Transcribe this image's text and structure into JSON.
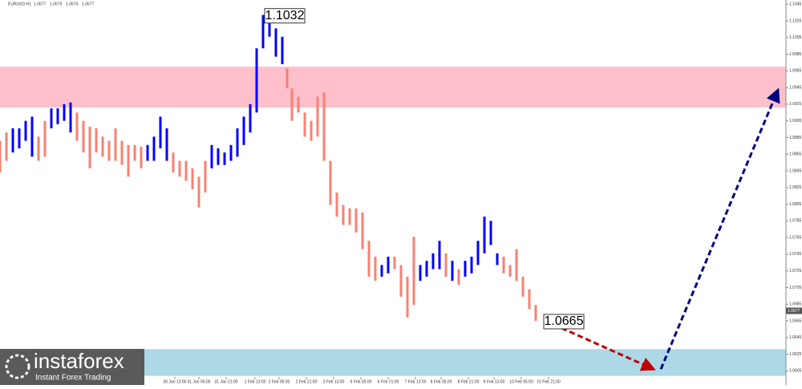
{
  "chart_data": {
    "type": "range_bars",
    "symbol": "EURUSD,H1",
    "header_ohlc": [
      1.0677,
      1.0679,
      1.0674,
      1.0677
    ],
    "last_price": 1.0677,
    "xlim": [
      0,
      245
    ],
    "ylim": [
      1.0588,
      1.105
    ],
    "yticks": [
      1.1045,
      1.1025,
      1.1005,
      1.0985,
      1.0965,
      1.0945,
      1.0925,
      1.0905,
      1.0885,
      1.0865,
      1.0845,
      1.0825,
      1.0805,
      1.0785,
      1.0765,
      1.0745,
      1.0725,
      1.0705,
      1.0685,
      1.0665,
      1.0645,
      1.0625,
      1.0605
    ],
    "xticks": [
      {
        "value": 54.5,
        "label": "30 Jan 13:00"
      },
      {
        "value": 62,
        "label": "31 Jan 05:00"
      },
      {
        "value": 70.5,
        "label": "31 Jan 21:00"
      },
      {
        "value": 79.5,
        "label": "1 Feb 13:00"
      },
      {
        "value": 87,
        "label": "2 Feb 05:00"
      },
      {
        "value": 95.5,
        "label": "2 Feb 21:00"
      },
      {
        "value": 104,
        "label": "3 Feb 13:00"
      },
      {
        "value": 112.5,
        "label": "6 Feb 05:00"
      },
      {
        "value": 121,
        "label": "6 Feb 21:00"
      },
      {
        "value": 129.5,
        "label": "7 Feb 13:00"
      },
      {
        "value": 137.5,
        "label": "8 Feb 05:00"
      },
      {
        "value": 146,
        "label": "8 Feb 21:00"
      },
      {
        "value": 154,
        "label": "9 Feb 13:00"
      },
      {
        "value": 162.5,
        "label": "10 Feb 05:00"
      },
      {
        "value": 171,
        "label": "10 Feb 21:00"
      }
    ],
    "zones": [
      {
        "from": 1.0921,
        "to": 1.097,
        "color": "#ffc0cb"
      },
      {
        "from": 1.0599,
        "to": 1.0631,
        "color": "#add8e6"
      }
    ],
    "x": [
      0,
      2,
      4,
      6,
      8,
      10,
      12,
      14,
      16,
      18,
      20,
      22,
      24,
      26,
      28,
      30,
      32,
      34,
      36,
      38,
      40,
      42,
      44,
      46,
      48,
      50,
      52,
      54,
      56,
      58,
      60,
      62,
      64,
      66,
      68,
      70,
      72,
      74,
      76,
      78,
      80,
      82,
      84,
      86,
      88,
      89.5,
      91,
      93,
      95,
      97,
      99,
      101,
      103,
      105,
      107,
      109,
      111,
      113,
      115,
      117,
      119,
      121,
      123,
      125,
      127,
      129,
      131,
      133,
      135,
      137,
      139,
      141,
      143,
      145,
      147,
      149,
      151,
      153,
      155,
      157,
      159,
      161,
      163,
      165,
      167
    ],
    "high": [
      1.0881,
      1.0891,
      1.0896,
      1.0896,
      1.0905,
      1.091,
      1.0886,
      1.0905,
      1.092,
      1.092,
      1.0925,
      1.0927,
      1.0915,
      1.0905,
      1.0898,
      1.0896,
      1.0886,
      1.0881,
      1.0896,
      1.0881,
      1.0876,
      1.0876,
      1.0874,
      1.0876,
      1.0886,
      1.091,
      1.0896,
      1.0867,
      1.0857,
      1.0857,
      1.0848,
      1.0838,
      1.0857,
      1.0876,
      1.0872,
      1.0867,
      1.0876,
      1.0896,
      1.091,
      1.0925,
      1.0992,
      1.1032,
      1.1026,
      1.1016,
      1.1006,
      1.0968,
      1.0944,
      1.0934,
      1.0915,
      1.0905,
      1.0934,
      1.0939,
      1.0857,
      1.0819,
      1.0804,
      1.08,
      1.08,
      1.0795,
      1.0761,
      1.0742,
      1.0732,
      1.0742,
      1.0742,
      1.0732,
      1.0718,
      1.0766,
      1.0732,
      1.0737,
      1.0746,
      1.0761,
      1.0746,
      1.0737,
      1.0727,
      1.0737,
      1.0742,
      1.0761,
      1.079,
      1.0785,
      1.0746,
      1.0742,
      1.0732,
      1.0751,
      1.0718,
      1.0703,
      1.0684
    ],
    "low": [
      1.0843,
      1.0857,
      1.0867,
      1.0872,
      1.0881,
      1.0862,
      1.0857,
      1.0862,
      1.0896,
      1.0901,
      1.0905,
      1.0891,
      1.0881,
      1.0867,
      1.0848,
      1.0867,
      1.0862,
      1.0857,
      1.0857,
      1.0852,
      1.0838,
      1.0857,
      1.0848,
      1.0857,
      1.0857,
      1.0872,
      1.0857,
      1.0843,
      1.0838,
      1.0833,
      1.0823,
      1.0801,
      1.0819,
      1.0848,
      1.0852,
      1.0852,
      1.0857,
      1.0862,
      1.0876,
      1.0891,
      1.0915,
      1.0992,
      1.1006,
      1.0982,
      1.0973,
      1.0944,
      1.0905,
      1.0915,
      1.0886,
      1.0881,
      1.0886,
      1.0857,
      1.0804,
      1.079,
      1.078,
      1.078,
      1.0771,
      1.0751,
      1.0718,
      1.0713,
      1.0718,
      1.0722,
      1.0727,
      1.0694,
      1.0669,
      1.0684,
      1.0713,
      1.0718,
      1.0727,
      1.0727,
      1.0718,
      1.0713,
      1.0708,
      1.0718,
      1.0722,
      1.0732,
      1.0746,
      1.0756,
      1.0732,
      1.0722,
      1.0718,
      1.0713,
      1.0694,
      1.0679,
      1.0665
    ],
    "colors": [
      "#fa8072",
      "#fa8072",
      "#0000ff",
      "#0000ff",
      "#0000ff",
      "#0000ff",
      "#fa8072",
      "#fa8072",
      "#0000ff",
      "#0000ff",
      "#0000ff",
      "#0000ff",
      "#fa8072",
      "#fa8072",
      "#fa8072",
      "#fa8072",
      "#fa8072",
      "#fa8072",
      "#fa8072",
      "#fa8072",
      "#fa8072",
      "#fa8072",
      "#fa8072",
      "#0000ff",
      "#0000ff",
      "#0000ff",
      "#0000ff",
      "#fa8072",
      "#fa8072",
      "#fa8072",
      "#fa8072",
      "#fa8072",
      "#fa8072",
      "#0000ff",
      "#0000ff",
      "#0000ff",
      "#0000ff",
      "#0000ff",
      "#0000ff",
      "#0000ff",
      "#0000ff",
      "#0000ff",
      "#0000ff",
      "#0000ff",
      "#0000ff",
      "#fa8072",
      "#fa8072",
      "#fa8072",
      "#fa8072",
      "#fa8072",
      "#fa8072",
      "#fa8072",
      "#fa8072",
      "#fa8072",
      "#fa8072",
      "#fa8072",
      "#fa8072",
      "#fa8072",
      "#fa8072",
      "#fa8072",
      "#0000ff",
      "#0000ff",
      "#fa8072",
      "#fa8072",
      "#fa8072",
      "#fa8072",
      "#0000ff",
      "#0000ff",
      "#0000ff",
      "#0000ff",
      "#fa8072",
      "#0000ff",
      "#fa8072",
      "#0000ff",
      "#0000ff",
      "#0000ff",
      "#0000ff",
      "#0000ff",
      "#0000ff",
      "#fa8072",
      "#fa8072",
      "#fa8072",
      "#fa8072",
      "#fa8072",
      "#fa8072"
    ],
    "annotations": [
      {
        "x": 82,
        "value": 1.1032
      },
      {
        "x": 169,
        "value": 1.0665
      }
    ],
    "arrows": [
      {
        "color": "#c00000",
        "x": [
          170,
          203.75
        ],
        "y": [
          1.0665,
          1.0607
        ]
      },
      {
        "color": "#000080",
        "x": [
          206,
          242.5
        ],
        "y": [
          1.0607,
          1.0942
        ]
      }
    ],
    "branding": {
      "name": "instaforex",
      "tagline": "Instant Forex Trading"
    }
  }
}
